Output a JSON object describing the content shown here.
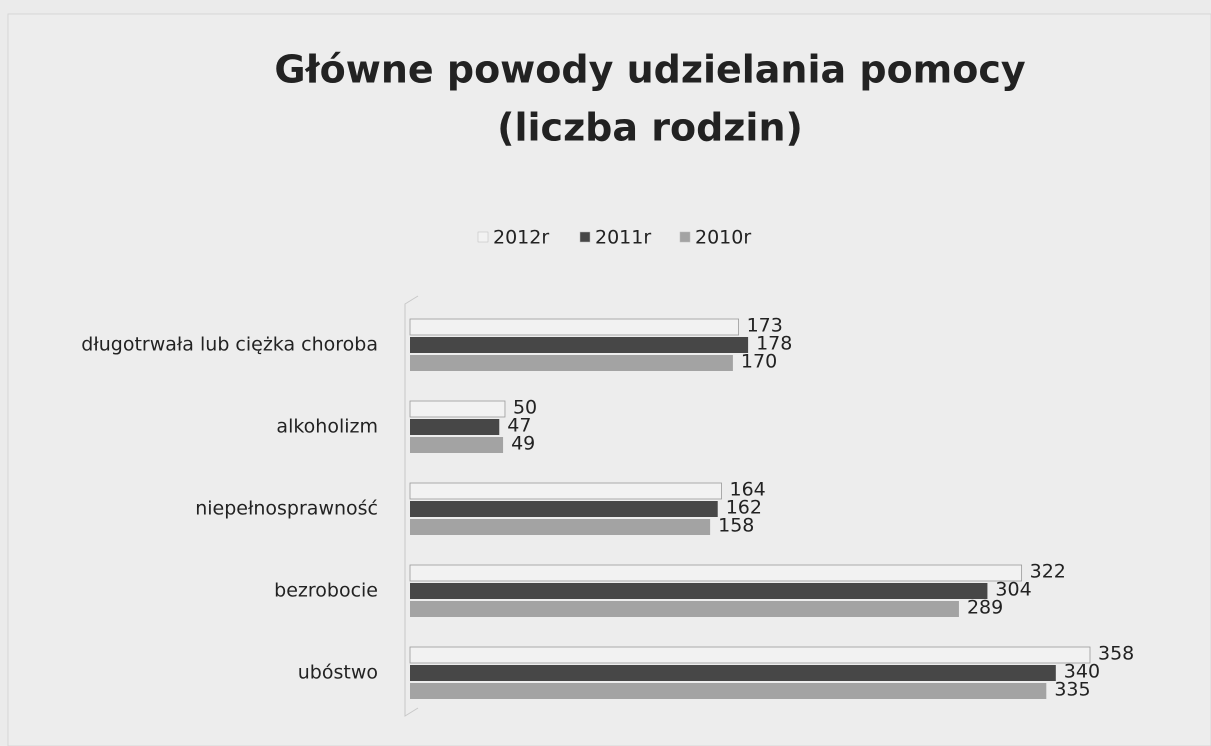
{
  "chart_data": {
    "type": "bar",
    "orientation": "horizontal",
    "title": "Główne powody udzielania pomocy",
    "subtitle": "(liczba rodzin)",
    "categories": [
      "długotrwała lub ciężka choroba",
      "alkoholizm",
      "niepełnosprawność",
      "bezrobocie",
      "ubóstwo"
    ],
    "series": [
      {
        "name": "2012r",
        "color": "#f2f2f2",
        "values": [
          173,
          50,
          164,
          322,
          358
        ]
      },
      {
        "name": "2011r",
        "color": "#474747",
        "values": [
          178,
          47,
          162,
          304,
          340
        ]
      },
      {
        "name": "2010r",
        "color": "#a3a3a3",
        "values": [
          170,
          49,
          158,
          289,
          335
        ]
      }
    ],
    "legend": "top"
  }
}
